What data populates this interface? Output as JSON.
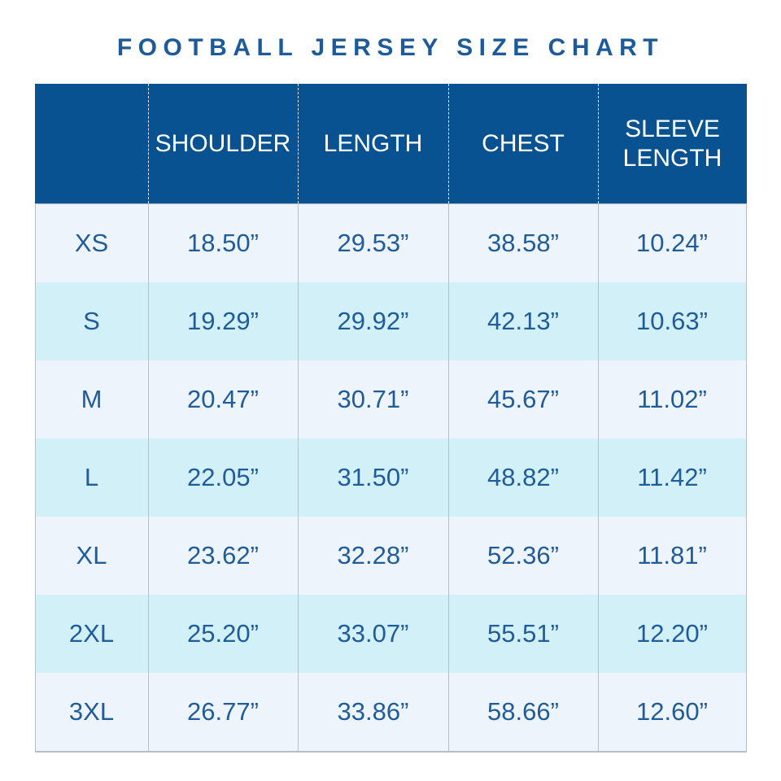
{
  "colors": {
    "page_background": "#ffffff",
    "title_text": "#1d5a9a",
    "header_background": "#085291",
    "header_text": "#ffffff",
    "row_light": "#eef4fb",
    "row_cyan": "#d2f0f8",
    "cell_text": "#1f5c9b",
    "grid_line": "#b9c0c6"
  },
  "chart_data": {
    "type": "table",
    "title": "FOOTBALL JERSEY SIZE CHART",
    "columns": [
      "",
      "SHOULDER",
      "LENGTH",
      "CHEST",
      "SLEEVE LENGTH"
    ],
    "rows": [
      [
        "XS",
        "18.50”",
        "29.53”",
        "38.58”",
        "10.24”"
      ],
      [
        "S",
        "19.29”",
        "29.92”",
        "42.13”",
        "10.63”"
      ],
      [
        "M",
        "20.47”",
        "30.71”",
        "45.67”",
        "11.02”"
      ],
      [
        "L",
        "22.05”",
        "31.50”",
        "48.82”",
        "11.42”"
      ],
      [
        "XL",
        "23.62”",
        "32.28”",
        "52.36”",
        "11.81”"
      ],
      [
        "2XL",
        "25.20”",
        "33.07”",
        "55.51”",
        "12.20”"
      ],
      [
        "3XL",
        "26.77”",
        "33.86”",
        "58.66”",
        "12.60”"
      ]
    ]
  }
}
